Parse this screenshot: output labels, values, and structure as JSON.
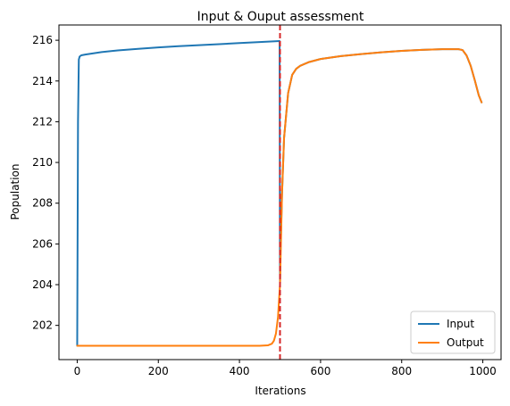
{
  "chart_data": {
    "type": "line",
    "title": "Input & Ouput assessment",
    "xlabel": "Iterations",
    "ylabel": "Population",
    "xlim": [
      -45,
      1045
    ],
    "ylim": [
      200.32,
      216.75
    ],
    "xticks": [
      0,
      200,
      400,
      600,
      800,
      1000
    ],
    "yticks": [
      202,
      204,
      206,
      208,
      210,
      212,
      214,
      216
    ],
    "grid": false,
    "legend_position": "lower-right",
    "colors": {
      "Input": "#1f77b4",
      "Output": "#ff7f0e",
      "divider": "#d62728"
    },
    "vline": {
      "x": 500,
      "style": "dashed",
      "color": "#d62728"
    },
    "series": [
      {
        "name": "Input",
        "x": [
          0,
          2,
          4,
          6,
          10,
          20,
          40,
          60,
          100,
          150,
          200,
          250,
          300,
          350,
          400,
          450,
          499,
          500,
          501,
          505,
          510,
          520,
          530,
          540,
          550,
          570,
          600,
          650,
          700,
          750,
          800,
          850,
          900,
          940,
          950,
          960,
          970,
          980,
          990,
          997
        ],
        "y": [
          201.0,
          212.0,
          215.05,
          215.2,
          215.26,
          215.3,
          215.36,
          215.42,
          215.5,
          215.58,
          215.65,
          215.71,
          215.76,
          215.81,
          215.86,
          215.91,
          215.96,
          204.0,
          205.5,
          208.5,
          211.2,
          213.4,
          214.3,
          214.6,
          214.75,
          214.92,
          215.08,
          215.22,
          215.32,
          215.41,
          215.48,
          215.53,
          215.56,
          215.56,
          215.52,
          215.25,
          214.75,
          214.05,
          213.3,
          212.95
        ]
      },
      {
        "name": "Output",
        "x": [
          0,
          100,
          200,
          300,
          400,
          450,
          470,
          480,
          485,
          490,
          495,
          500,
          505,
          510,
          520,
          530,
          540,
          550,
          570,
          600,
          650,
          700,
          750,
          800,
          850,
          900,
          940,
          950,
          960,
          970,
          980,
          990,
          997
        ],
        "y": [
          201.0,
          201.0,
          201.0,
          201.0,
          201.0,
          201.0,
          201.02,
          201.1,
          201.25,
          201.6,
          202.4,
          204.0,
          208.5,
          211.2,
          213.4,
          214.3,
          214.6,
          214.75,
          214.92,
          215.08,
          215.22,
          215.32,
          215.41,
          215.48,
          215.53,
          215.56,
          215.56,
          215.52,
          215.25,
          214.75,
          214.05,
          213.3,
          212.95
        ]
      }
    ]
  }
}
